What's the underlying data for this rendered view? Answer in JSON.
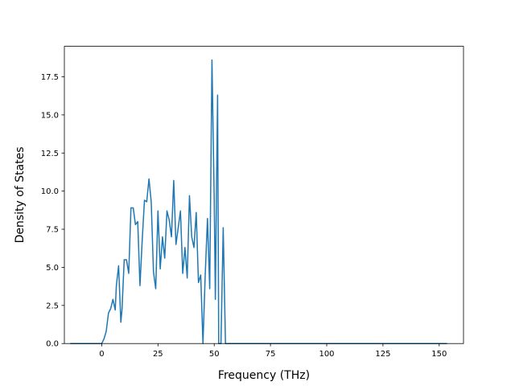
{
  "chart_data": {
    "type": "line",
    "title": "",
    "xlabel": "Frequency (THz)",
    "ylabel": "Density of States",
    "xlim": [
      -16.6,
      160.8
    ],
    "ylim": [
      0,
      19.5
    ],
    "grid": false,
    "legend": "none",
    "line_color": "#1f77b4",
    "xticks": [
      0,
      25,
      50,
      75,
      100,
      125,
      150
    ],
    "xtick_labels": [
      "0",
      "25",
      "50",
      "75",
      100,
      "125",
      "150"
    ],
    "yticks": [
      0,
      2.5,
      5,
      7.5,
      10,
      12.5,
      15,
      17.5
    ],
    "ytick_labels": [
      "0.0",
      "2.5",
      "5.0",
      "7.5",
      "10.0",
      "12.5",
      "15.0",
      "17.5"
    ],
    "series": [
      {
        "x": [
          -14.0,
          -5.0,
          0.0,
          1.0,
          2.0,
          3.0,
          4.0,
          5.0,
          6.0,
          6.5,
          7.5,
          8.5,
          9.0,
          10.0,
          11.0,
          12.0,
          13.0,
          14.0,
          15.0,
          16.0,
          17.0,
          18.0,
          19.0,
          20.0,
          21.0,
          22.0,
          23.0,
          24.0,
          25.0,
          26.0,
          27.0,
          28.0,
          29.0,
          30.0,
          31.0,
          32.0,
          33.0,
          34.0,
          35.0,
          36.0,
          37.0,
          38.0,
          39.0,
          40.0,
          41.0,
          42.0,
          43.0,
          44.0,
          45.0,
          46.0,
          47.0,
          48.0,
          49.0,
          50.0,
          50.5,
          51.0,
          51.5,
          52.0,
          52.5,
          53.0,
          54.0,
          55.0,
          56.0,
          60.0,
          100.0,
          153.5
        ],
        "y": [
          0,
          0,
          0,
          0.3,
          0.8,
          2.0,
          2.3,
          2.9,
          2.2,
          3.8,
          5.1,
          1.4,
          2.2,
          5.5,
          5.5,
          4.6,
          8.9,
          8.9,
          7.8,
          8.0,
          3.8,
          6.8,
          9.4,
          9.3,
          10.8,
          9.3,
          4.7,
          3.6,
          8.7,
          4.9,
          7.0,
          5.6,
          8.7,
          8.1,
          7.0,
          10.7,
          6.5,
          7.6,
          8.7,
          4.6,
          6.3,
          4.3,
          9.7,
          7.0,
          6.3,
          8.6,
          4.0,
          4.5,
          0.0,
          4.5,
          8.2,
          3.6,
          18.6,
          9.5,
          2.9,
          10.0,
          16.3,
          0.0,
          0.0,
          0.0,
          7.6,
          0.0,
          0.0,
          0,
          0,
          0
        ]
      }
    ]
  }
}
